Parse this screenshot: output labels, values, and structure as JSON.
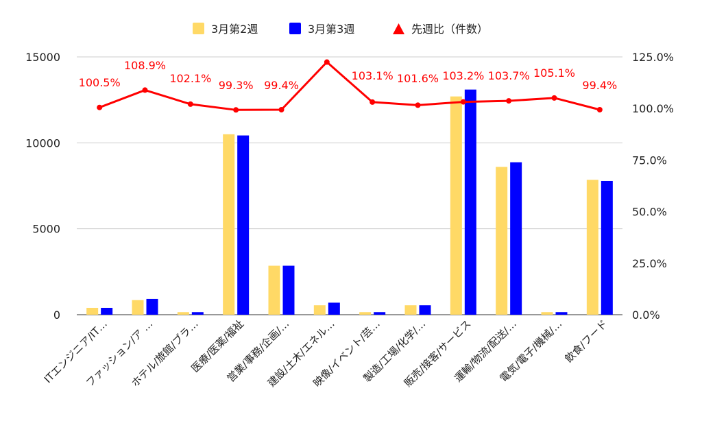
{
  "chart_data": {
    "type": "bar",
    "categories": [
      "ITエンジニア/IT…",
      "ファッション/ア …",
      "ホテル/旅館/ブラ…",
      "医療/医薬/福祉",
      "営業/事務/企画/…",
      "建設/土木/エネル…",
      "映像/イベント/芸…",
      "製造/工場/化学/…",
      "販売/接客/サービス",
      "運輸/物流/配送/…",
      "電気/電子/機械/…",
      "飲食/フード"
    ],
    "series": [
      {
        "name": "3月第2週",
        "type": "bar",
        "axis": "left",
        "color": "#FFD966",
        "values": [
          400,
          850,
          150,
          10500,
          2850,
          550,
          150,
          550,
          12700,
          8600,
          150,
          7850
        ]
      },
      {
        "name": "3月第3週",
        "type": "bar",
        "axis": "left",
        "color": "#0000FF",
        "values": [
          400,
          920,
          150,
          10430,
          2850,
          700,
          150,
          550,
          13100,
          8870,
          150,
          7780
        ]
      },
      {
        "name": "先週比（件数）",
        "type": "line",
        "axis": "right",
        "color": "#FF0000",
        "values": [
          100.5,
          108.9,
          102.1,
          99.3,
          99.4,
          122.5,
          103.1,
          101.6,
          103.2,
          103.7,
          105.1,
          99.4
        ],
        "labels": [
          "100.5%",
          "108.9%",
          "102.1%",
          "99.3%",
          "99.4%",
          "",
          "103.1%",
          "101.6%",
          "103.2%",
          "103.7%",
          "105.1%",
          "99.4%"
        ]
      }
    ],
    "left_axis": {
      "ylim": [
        0,
        15000
      ],
      "ticks": [
        "0",
        "5000",
        "10000",
        "15000"
      ],
      "tick_values": [
        0,
        5000,
        10000,
        15000
      ]
    },
    "right_axis": {
      "ylim": [
        0,
        125
      ],
      "ticks": [
        "0.0%",
        "25.0%",
        "50.0%",
        "75.0%",
        "100.0%",
        "125.0%"
      ],
      "tick_values": [
        0,
        25,
        50,
        75,
        100,
        125
      ]
    },
    "legend_position": "top",
    "grid": true
  }
}
